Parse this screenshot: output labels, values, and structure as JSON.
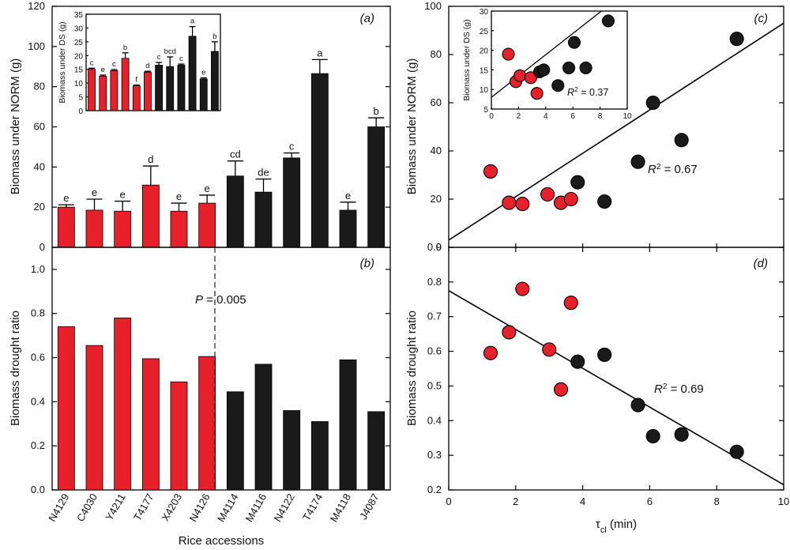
{
  "colors": {
    "group1": "#e8202a",
    "group2": "#1a1a1a",
    "axis": "#000000"
  },
  "chart_data": [
    {
      "panel": "(a)",
      "type": "bar",
      "ylabel": "Biomass under NORM (g)",
      "ylim": [
        0,
        120
      ],
      "yticks": [
        0,
        20,
        40,
        60,
        80,
        100,
        120
      ],
      "categories": [
        "N4129",
        "C4030",
        "Y4211",
        "T4177",
        "X4203",
        "N4126",
        "M4114",
        "M4116",
        "N4122",
        "T4174",
        "M4118",
        "J4087"
      ],
      "groups": [
        "group1",
        "group1",
        "group1",
        "group1",
        "group1",
        "group1",
        "group2",
        "group2",
        "group2",
        "group2",
        "group2",
        "group2"
      ],
      "values": [
        20,
        18.5,
        18,
        31,
        18,
        22,
        35.5,
        27.5,
        44.5,
        86.5,
        18.5,
        60
      ],
      "errors": [
        1.2,
        5.5,
        5,
        9.5,
        4,
        4,
        7.5,
        6.5,
        2.5,
        7,
        4,
        4.5
      ],
      "letters": [
        "e",
        "e",
        "e",
        "d",
        "e",
        "e",
        "cd",
        "de",
        "c",
        "a",
        "e",
        "b"
      ],
      "inset": {
        "type": "bar",
        "ylabel": "Biomass under DS (g)",
        "ylim": [
          0,
          35
        ],
        "yticks": [
          0,
          5,
          10,
          15,
          20,
          25,
          30,
          35
        ],
        "values": [
          15,
          12.5,
          14.5,
          19,
          9,
          14,
          16.5,
          16,
          16.5,
          27,
          11.5,
          21.5
        ],
        "errors": [
          0.4,
          0.4,
          0.4,
          2,
          0.3,
          0.3,
          1,
          3.5,
          0.4,
          3.5,
          0.4,
          3.5
        ],
        "letters": [
          "c",
          "e",
          "c",
          "b",
          "f",
          "d",
          "c",
          "bcd",
          "c",
          "a",
          "e",
          "b"
        ]
      }
    },
    {
      "panel": "(b)",
      "type": "bar",
      "ylabel": "Biomass drought ratio",
      "xlabel": "Rice accessions",
      "ylim": [
        0,
        1.1
      ],
      "yticks": [
        0,
        0.2,
        0.4,
        0.6,
        0.8,
        1.0
      ],
      "ytick_labels": [
        "0.0",
        "0.2",
        "0.4",
        "0.6",
        "0.8",
        "1.0"
      ],
      "categories": [
        "N4129",
        "C4030",
        "Y4211",
        "T4177",
        "X4203",
        "N4126",
        "M4114",
        "M4116",
        "N4122",
        "T4174",
        "M4118",
        "J4087"
      ],
      "groups": [
        "group1",
        "group1",
        "group1",
        "group1",
        "group1",
        "group1",
        "group2",
        "group2",
        "group2",
        "group2",
        "group2",
        "group2"
      ],
      "values": [
        0.74,
        0.655,
        0.78,
        0.595,
        0.49,
        0.605,
        0.445,
        0.57,
        0.36,
        0.31,
        0.59,
        0.355
      ],
      "annotation": {
        "p_symbol": "P",
        "p_text": " = 0.005"
      }
    },
    {
      "panel": "(c)",
      "type": "scatter",
      "ylabel": "Biomass under NORM (g)",
      "xlim": [
        0,
        10
      ],
      "ylim": [
        0,
        100
      ],
      "yticks": [
        0,
        20,
        40,
        60,
        80,
        100
      ],
      "points": [
        {
          "x": 1.25,
          "y": 31.5,
          "group": "group1"
        },
        {
          "x": 1.8,
          "y": 18.5,
          "group": "group1"
        },
        {
          "x": 2.2,
          "y": 18,
          "group": "group1"
        },
        {
          "x": 2.95,
          "y": 22,
          "group": "group1"
        },
        {
          "x": 3.35,
          "y": 18.5,
          "group": "group1"
        },
        {
          "x": 3.65,
          "y": 20,
          "group": "group1"
        },
        {
          "x": 3.85,
          "y": 27,
          "group": "group2"
        },
        {
          "x": 4.65,
          "y": 19,
          "group": "group2"
        },
        {
          "x": 5.65,
          "y": 35.5,
          "group": "group2"
        },
        {
          "x": 6.1,
          "y": 60,
          "group": "group2"
        },
        {
          "x": 6.95,
          "y": 44.5,
          "group": "group2"
        },
        {
          "x": 8.6,
          "y": 86.5,
          "group": "group2"
        }
      ],
      "fit": {
        "x0": 0,
        "y0": 3,
        "x1": 10,
        "y1": 93
      },
      "r2_symbol": "R",
      "r2_exp": "2",
      "r2_value": " = 0.67",
      "inset": {
        "type": "scatter",
        "ylabel": "Biomass under DS (g)",
        "xlim": [
          0,
          10
        ],
        "ylim": [
          5,
          30
        ],
        "yticks": [
          5,
          10,
          15,
          20,
          25,
          30
        ],
        "xticks": [
          0,
          2,
          4,
          6,
          8,
          10
        ],
        "points": [
          {
            "x": 1.25,
            "y": 19,
            "group": "group1"
          },
          {
            "x": 1.8,
            "y": 12,
            "group": "group1"
          },
          {
            "x": 2.1,
            "y": 13.5,
            "group": "group1"
          },
          {
            "x": 2.9,
            "y": 13,
            "group": "group1"
          },
          {
            "x": 3.35,
            "y": 9,
            "group": "group1"
          },
          {
            "x": 3.55,
            "y": 14.5,
            "group": "group2"
          },
          {
            "x": 3.85,
            "y": 15,
            "group": "group2"
          },
          {
            "x": 4.9,
            "y": 11,
            "group": "group2"
          },
          {
            "x": 5.7,
            "y": 15.5,
            "group": "group2"
          },
          {
            "x": 6.1,
            "y": 22,
            "group": "group2"
          },
          {
            "x": 6.95,
            "y": 15.5,
            "group": "group2"
          },
          {
            "x": 8.6,
            "y": 27.5,
            "group": "group2"
          }
        ],
        "fit": {
          "x0": 0,
          "y0": 8,
          "x1": 8.1,
          "y1": 30
        },
        "r2_symbol": "R",
        "r2_exp": "2",
        "r2_value": " = 0.37"
      }
    },
    {
      "panel": "(d)",
      "type": "scatter",
      "ylabel": "Biomass drought ratio",
      "xlabel_symbol": "τ",
      "xlabel_sub": "cl",
      "xlabel_unit": " (min)",
      "xlim": [
        0,
        10
      ],
      "ylim": [
        0.2,
        0.9
      ],
      "xticks": [
        0,
        2,
        4,
        6,
        8,
        10
      ],
      "yticks": [
        0.2,
        0.3,
        0.4,
        0.5,
        0.6,
        0.7,
        0.8,
        0.9
      ],
      "points": [
        {
          "x": 1.25,
          "y": 0.595,
          "group": "group1"
        },
        {
          "x": 1.8,
          "y": 0.655,
          "group": "group1"
        },
        {
          "x": 2.2,
          "y": 0.78,
          "group": "group1"
        },
        {
          "x": 3.0,
          "y": 0.605,
          "group": "group1"
        },
        {
          "x": 3.35,
          "y": 0.49,
          "group": "group1"
        },
        {
          "x": 3.65,
          "y": 0.74,
          "group": "group1"
        },
        {
          "x": 3.85,
          "y": 0.57,
          "group": "group2"
        },
        {
          "x": 4.65,
          "y": 0.59,
          "group": "group2"
        },
        {
          "x": 5.65,
          "y": 0.445,
          "group": "group2"
        },
        {
          "x": 6.1,
          "y": 0.355,
          "group": "group2"
        },
        {
          "x": 6.95,
          "y": 0.36,
          "group": "group2"
        },
        {
          "x": 8.6,
          "y": 0.31,
          "group": "group2"
        }
      ],
      "fit": {
        "x0": 0,
        "y0": 0.775,
        "x1": 10,
        "y1": 0.215
      },
      "r2_symbol": "R",
      "r2_exp": "2",
      "r2_value": " = 0.69"
    }
  ]
}
